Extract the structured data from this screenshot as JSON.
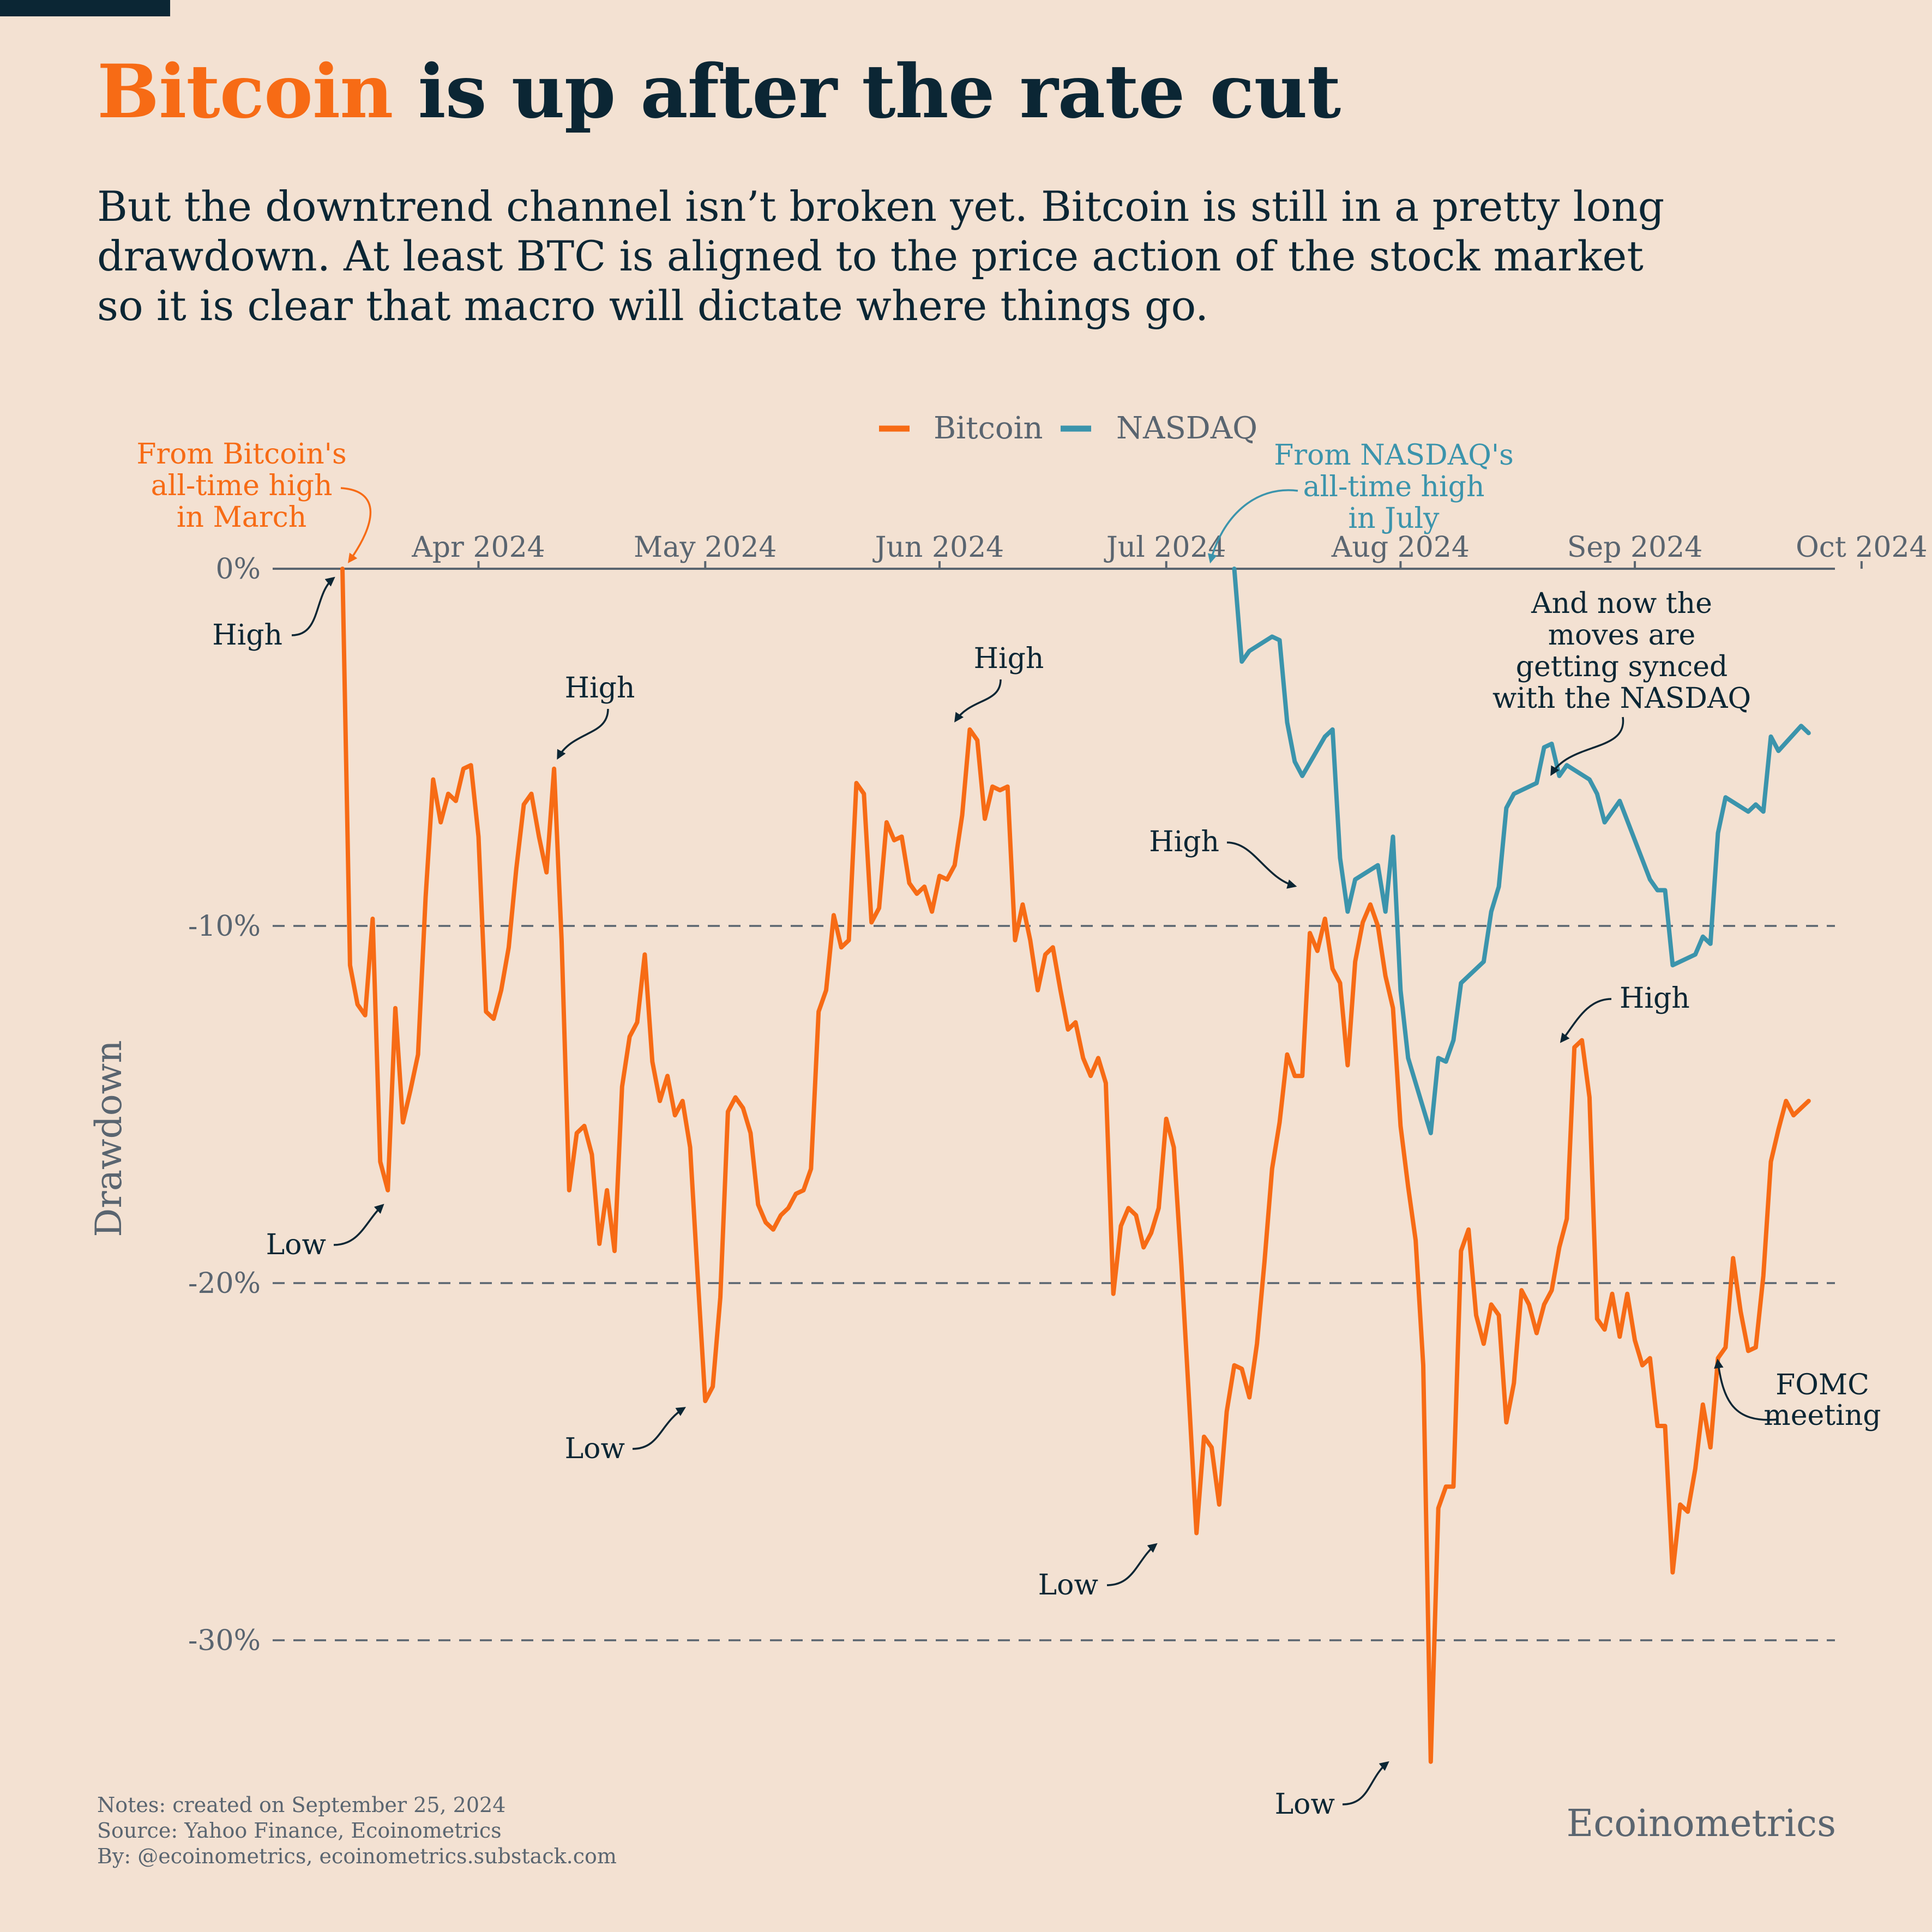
{
  "header": {
    "title_highlight": "Bitcoin",
    "title_rest": " is up after the rate cut",
    "subtitle_lines": [
      "But the downtrend channel isn’t broken yet. Bitcoin is still in a pretty long",
      "drawdown. At least BTC is aligned to the price action of the stock market",
      "so it is clear that macro will dictate where things go."
    ]
  },
  "colors": {
    "bitcoin": "#f76b15",
    "nasdaq": "#3b94ac",
    "text": "#0b2634",
    "muted": "#5a6570",
    "background": "#f3e1d2"
  },
  "chart_data": {
    "type": "line",
    "ylabel": "Drawdown",
    "y_unit": "%",
    "ylim": [
      -34,
      0
    ],
    "yticks": [
      0,
      -10,
      -20,
      -30
    ],
    "ytick_labels": [
      "0%",
      "-10%",
      "-20%",
      "-30%"
    ],
    "grid": "horizontal dashed",
    "legend_position": "top-center",
    "x_ticks": [
      {
        "date": "2024-04-01",
        "label": "Apr 2024"
      },
      {
        "date": "2024-05-01",
        "label": "May 2024"
      },
      {
        "date": "2024-06-01",
        "label": "Jun 2024"
      },
      {
        "date": "2024-07-01",
        "label": "Jul 2024"
      },
      {
        "date": "2024-08-01",
        "label": "Aug 2024"
      },
      {
        "date": "2024-09-01",
        "label": "Sep 2024"
      },
      {
        "date": "2024-10-01",
        "label": "Oct 2024"
      }
    ],
    "xlim": [
      "2024-03-05",
      "2024-10-05"
    ],
    "series": [
      {
        "name": "Bitcoin",
        "points": [
          [
            "2024-03-14",
            0.0
          ],
          [
            "2024-03-15",
            -11.1
          ],
          [
            "2024-03-16",
            -12.2
          ],
          [
            "2024-03-17",
            -12.5
          ],
          [
            "2024-03-18",
            -9.8
          ],
          [
            "2024-03-19",
            -16.6
          ],
          [
            "2024-03-20",
            -17.4
          ],
          [
            "2024-03-21",
            -12.3
          ],
          [
            "2024-03-22",
            -15.5
          ],
          [
            "2024-03-23",
            -14.6
          ],
          [
            "2024-03-24",
            -13.6
          ],
          [
            "2024-03-25",
            -9.2
          ],
          [
            "2024-03-26",
            -5.9
          ],
          [
            "2024-03-27",
            -7.1
          ],
          [
            "2024-03-28",
            -6.3
          ],
          [
            "2024-03-29",
            -6.5
          ],
          [
            "2024-03-30",
            -5.6
          ],
          [
            "2024-03-31",
            -5.5
          ],
          [
            "2024-04-01",
            -7.5
          ],
          [
            "2024-04-02",
            -12.4
          ],
          [
            "2024-04-03",
            -12.6
          ],
          [
            "2024-04-04",
            -11.8
          ],
          [
            "2024-04-05",
            -10.6
          ],
          [
            "2024-04-06",
            -8.4
          ],
          [
            "2024-04-07",
            -6.6
          ],
          [
            "2024-04-08",
            -6.3
          ],
          [
            "2024-04-09",
            -7.5
          ],
          [
            "2024-04-10",
            -8.5
          ],
          [
            "2024-04-11",
            -5.6
          ],
          [
            "2024-04-12",
            -10.4
          ],
          [
            "2024-04-13",
            -17.4
          ],
          [
            "2024-04-14",
            -15.8
          ],
          [
            "2024-04-15",
            -15.6
          ],
          [
            "2024-04-16",
            -16.4
          ],
          [
            "2024-04-17",
            -18.9
          ],
          [
            "2024-04-18",
            -17.4
          ],
          [
            "2024-04-19",
            -19.1
          ],
          [
            "2024-04-20",
            -14.5
          ],
          [
            "2024-04-21",
            -13.1
          ],
          [
            "2024-04-22",
            -12.7
          ],
          [
            "2024-04-23",
            -10.8
          ],
          [
            "2024-04-24",
            -13.8
          ],
          [
            "2024-04-25",
            -14.9
          ],
          [
            "2024-04-26",
            -14.2
          ],
          [
            "2024-04-27",
            -15.3
          ],
          [
            "2024-04-28",
            -14.9
          ],
          [
            "2024-04-29",
            -16.2
          ],
          [
            "2024-04-30",
            -19.8
          ],
          [
            "2024-05-01",
            -23.3
          ],
          [
            "2024-05-02",
            -22.9
          ],
          [
            "2024-05-03",
            -20.4
          ],
          [
            "2024-05-04",
            -15.2
          ],
          [
            "2024-05-05",
            -14.8
          ],
          [
            "2024-05-06",
            -15.1
          ],
          [
            "2024-05-07",
            -15.8
          ],
          [
            "2024-05-08",
            -17.8
          ],
          [
            "2024-05-09",
            -18.3
          ],
          [
            "2024-05-10",
            -18.5
          ],
          [
            "2024-05-11",
            -18.1
          ],
          [
            "2024-05-12",
            -17.9
          ],
          [
            "2024-05-13",
            -17.5
          ],
          [
            "2024-05-14",
            -17.4
          ],
          [
            "2024-05-15",
            -16.8
          ],
          [
            "2024-05-16",
            -12.4
          ],
          [
            "2024-05-17",
            -11.8
          ],
          [
            "2024-05-18",
            -9.7
          ],
          [
            "2024-05-19",
            -10.6
          ],
          [
            "2024-05-20",
            -10.4
          ],
          [
            "2024-05-21",
            -6.0
          ],
          [
            "2024-05-22",
            -6.3
          ],
          [
            "2024-05-23",
            -9.9
          ],
          [
            "2024-05-24",
            -9.5
          ],
          [
            "2024-05-25",
            -7.1
          ],
          [
            "2024-05-26",
            -7.6
          ],
          [
            "2024-05-27",
            -7.5
          ],
          [
            "2024-05-28",
            -8.8
          ],
          [
            "2024-05-29",
            -9.1
          ],
          [
            "2024-05-30",
            -8.9
          ],
          [
            "2024-05-31",
            -9.6
          ],
          [
            "2024-06-01",
            -8.6
          ],
          [
            "2024-06-02",
            -8.7
          ],
          [
            "2024-06-03",
            -8.3
          ],
          [
            "2024-06-04",
            -6.9
          ],
          [
            "2024-06-05",
            -4.5
          ],
          [
            "2024-06-06",
            -4.8
          ],
          [
            "2024-06-07",
            -7.0
          ],
          [
            "2024-06-08",
            -6.1
          ],
          [
            "2024-06-09",
            -6.2
          ],
          [
            "2024-06-10",
            -6.1
          ],
          [
            "2024-06-11",
            -10.4
          ],
          [
            "2024-06-12",
            -9.4
          ],
          [
            "2024-06-13",
            -10.4
          ],
          [
            "2024-06-14",
            -11.8
          ],
          [
            "2024-06-15",
            -10.8
          ],
          [
            "2024-06-16",
            -10.6
          ],
          [
            "2024-06-17",
            -11.8
          ],
          [
            "2024-06-18",
            -12.9
          ],
          [
            "2024-06-19",
            -12.7
          ],
          [
            "2024-06-20",
            -13.7
          ],
          [
            "2024-06-21",
            -14.2
          ],
          [
            "2024-06-22",
            -13.7
          ],
          [
            "2024-06-23",
            -14.4
          ],
          [
            "2024-06-24",
            -20.3
          ],
          [
            "2024-06-25",
            -18.4
          ],
          [
            "2024-06-26",
            -17.9
          ],
          [
            "2024-06-27",
            -18.1
          ],
          [
            "2024-06-28",
            -19.0
          ],
          [
            "2024-06-29",
            -18.6
          ],
          [
            "2024-06-30",
            -17.9
          ],
          [
            "2024-07-01",
            -15.4
          ],
          [
            "2024-07-02",
            -16.2
          ],
          [
            "2024-07-03",
            -19.5
          ],
          [
            "2024-07-04",
            -23.2
          ],
          [
            "2024-07-05",
            -27.0
          ],
          [
            "2024-07-06",
            -24.3
          ],
          [
            "2024-07-07",
            -24.6
          ],
          [
            "2024-07-08",
            -26.2
          ],
          [
            "2024-07-09",
            -23.6
          ],
          [
            "2024-07-10",
            -22.3
          ],
          [
            "2024-07-11",
            -22.4
          ],
          [
            "2024-07-12",
            -23.2
          ],
          [
            "2024-07-13",
            -21.7
          ],
          [
            "2024-07-14",
            -19.4
          ],
          [
            "2024-07-15",
            -16.8
          ],
          [
            "2024-07-16",
            -15.5
          ],
          [
            "2024-07-17",
            -13.6
          ],
          [
            "2024-07-18",
            -14.2
          ],
          [
            "2024-07-19",
            -14.2
          ],
          [
            "2024-07-20",
            -10.2
          ],
          [
            "2024-07-21",
            -10.7
          ],
          [
            "2024-07-22",
            -9.8
          ],
          [
            "2024-07-23",
            -11.2
          ],
          [
            "2024-07-24",
            -11.6
          ],
          [
            "2024-07-25",
            -13.9
          ],
          [
            "2024-07-26",
            -11.0
          ],
          [
            "2024-07-27",
            -9.9
          ],
          [
            "2024-07-28",
            -9.4
          ],
          [
            "2024-07-29",
            -10.0
          ],
          [
            "2024-07-30",
            -11.4
          ],
          [
            "2024-07-31",
            -12.3
          ],
          [
            "2024-08-01",
            -15.6
          ],
          [
            "2024-08-02",
            -17.3
          ],
          [
            "2024-08-03",
            -18.8
          ],
          [
            "2024-08-04",
            -22.3
          ],
          [
            "2024-08-05",
            -33.4
          ],
          [
            "2024-08-06",
            -26.3
          ],
          [
            "2024-08-07",
            -25.7
          ],
          [
            "2024-08-08",
            -25.7
          ],
          [
            "2024-08-09",
            -19.1
          ],
          [
            "2024-08-10",
            -18.5
          ],
          [
            "2024-08-11",
            -20.9
          ],
          [
            "2024-08-12",
            -21.7
          ],
          [
            "2024-08-13",
            -20.6
          ],
          [
            "2024-08-14",
            -20.9
          ],
          [
            "2024-08-15",
            -23.9
          ],
          [
            "2024-08-16",
            -22.8
          ],
          [
            "2024-08-17",
            -20.2
          ],
          [
            "2024-08-18",
            -20.6
          ],
          [
            "2024-08-19",
            -21.4
          ],
          [
            "2024-08-20",
            -20.6
          ],
          [
            "2024-08-21",
            -20.2
          ],
          [
            "2024-08-22",
            -19.0
          ],
          [
            "2024-08-23",
            -18.2
          ],
          [
            "2024-08-24",
            -13.4
          ],
          [
            "2024-08-25",
            -13.2
          ],
          [
            "2024-08-26",
            -14.8
          ],
          [
            "2024-08-27",
            -21.0
          ],
          [
            "2024-08-28",
            -21.3
          ],
          [
            "2024-08-29",
            -20.3
          ],
          [
            "2024-08-30",
            -21.5
          ],
          [
            "2024-08-31",
            -20.3
          ],
          [
            "2024-09-01",
            -21.6
          ],
          [
            "2024-09-02",
            -22.3
          ],
          [
            "2024-09-03",
            -22.1
          ],
          [
            "2024-09-04",
            -24.0
          ],
          [
            "2024-09-05",
            -24.0
          ],
          [
            "2024-09-06",
            -28.1
          ],
          [
            "2024-09-07",
            -26.2
          ],
          [
            "2024-09-08",
            -26.4
          ],
          [
            "2024-09-09",
            -25.2
          ],
          [
            "2024-09-10",
            -23.4
          ],
          [
            "2024-09-11",
            -24.6
          ],
          [
            "2024-09-12",
            -22.1
          ],
          [
            "2024-09-13",
            -21.8
          ],
          [
            "2024-09-14",
            -19.3
          ],
          [
            "2024-09-15",
            -20.8
          ],
          [
            "2024-09-16",
            -21.9
          ],
          [
            "2024-09-17",
            -21.8
          ],
          [
            "2024-09-18",
            -19.8
          ],
          [
            "2024-09-19",
            -16.6
          ],
          [
            "2024-09-20",
            -15.7
          ],
          [
            "2024-09-21",
            -14.9
          ],
          [
            "2024-09-22",
            -15.3
          ],
          [
            "2024-09-23",
            -15.1
          ],
          [
            "2024-09-24",
            -14.9
          ]
        ]
      },
      {
        "name": "NASDAQ",
        "points": [
          [
            "2024-07-10",
            0.0
          ],
          [
            "2024-07-11",
            -2.6
          ],
          [
            "2024-07-12",
            -2.3
          ],
          [
            "2024-07-15",
            -1.9
          ],
          [
            "2024-07-16",
            -2.0
          ],
          [
            "2024-07-17",
            -4.3
          ],
          [
            "2024-07-18",
            -5.4
          ],
          [
            "2024-07-19",
            -5.8
          ],
          [
            "2024-07-22",
            -4.7
          ],
          [
            "2024-07-23",
            -4.5
          ],
          [
            "2024-07-24",
            -8.1
          ],
          [
            "2024-07-25",
            -9.6
          ],
          [
            "2024-07-26",
            -8.7
          ],
          [
            "2024-07-29",
            -8.3
          ],
          [
            "2024-07-30",
            -9.6
          ],
          [
            "2024-07-31",
            -7.5
          ],
          [
            "2024-08-01",
            -11.8
          ],
          [
            "2024-08-02",
            -13.7
          ],
          [
            "2024-08-05",
            -15.8
          ],
          [
            "2024-08-06",
            -13.7
          ],
          [
            "2024-08-07",
            -13.8
          ],
          [
            "2024-08-08",
            -13.2
          ],
          [
            "2024-08-09",
            -11.6
          ],
          [
            "2024-08-12",
            -11.0
          ],
          [
            "2024-08-13",
            -9.6
          ],
          [
            "2024-08-14",
            -8.9
          ],
          [
            "2024-08-15",
            -6.7
          ],
          [
            "2024-08-16",
            -6.3
          ],
          [
            "2024-08-19",
            -6.0
          ],
          [
            "2024-08-20",
            -5.0
          ],
          [
            "2024-08-21",
            -4.9
          ],
          [
            "2024-08-22",
            -5.8
          ],
          [
            "2024-08-23",
            -5.5
          ],
          [
            "2024-08-26",
            -5.9
          ],
          [
            "2024-08-27",
            -6.3
          ],
          [
            "2024-08-28",
            -7.1
          ],
          [
            "2024-08-29",
            -6.8
          ],
          [
            "2024-08-30",
            -6.5
          ],
          [
            "2024-09-03",
            -8.7
          ],
          [
            "2024-09-04",
            -9.0
          ],
          [
            "2024-09-05",
            -9.0
          ],
          [
            "2024-09-06",
            -11.1
          ],
          [
            "2024-09-09",
            -10.8
          ],
          [
            "2024-09-10",
            -10.3
          ],
          [
            "2024-09-11",
            -10.5
          ],
          [
            "2024-09-12",
            -7.4
          ],
          [
            "2024-09-13",
            -6.4
          ],
          [
            "2024-09-16",
            -6.8
          ],
          [
            "2024-09-17",
            -6.6
          ],
          [
            "2024-09-18",
            -6.8
          ],
          [
            "2024-09-19",
            -4.7
          ],
          [
            "2024-09-20",
            -5.1
          ],
          [
            "2024-09-23",
            -4.4
          ],
          [
            "2024-09-24",
            -4.6
          ]
        ]
      }
    ],
    "annotations": [
      {
        "text": "From Bitcoin's\nall-time high\nin March",
        "color": "bitcoin"
      },
      {
        "text": "From NASDAQ's\nall-time high\nin July",
        "color": "nasdaq"
      },
      {
        "text": "High"
      },
      {
        "text": "Low"
      },
      {
        "text": "High"
      },
      {
        "text": "Low"
      },
      {
        "text": "High"
      },
      {
        "text": "Low"
      },
      {
        "text": "High"
      },
      {
        "text": "Low"
      },
      {
        "text": "High"
      },
      {
        "text": "And now the\nmoves are\ngetting synced\nwith the NASDAQ"
      },
      {
        "text": "FOMC\nmeeting"
      }
    ]
  },
  "footer": {
    "notes": "Notes: created on September 25, 2024",
    "source": "Source: Yahoo Finance, Ecoinometrics",
    "by": "By: @ecoinometrics, ecoinometrics.substack.com",
    "brand": "Ecoinometrics"
  }
}
